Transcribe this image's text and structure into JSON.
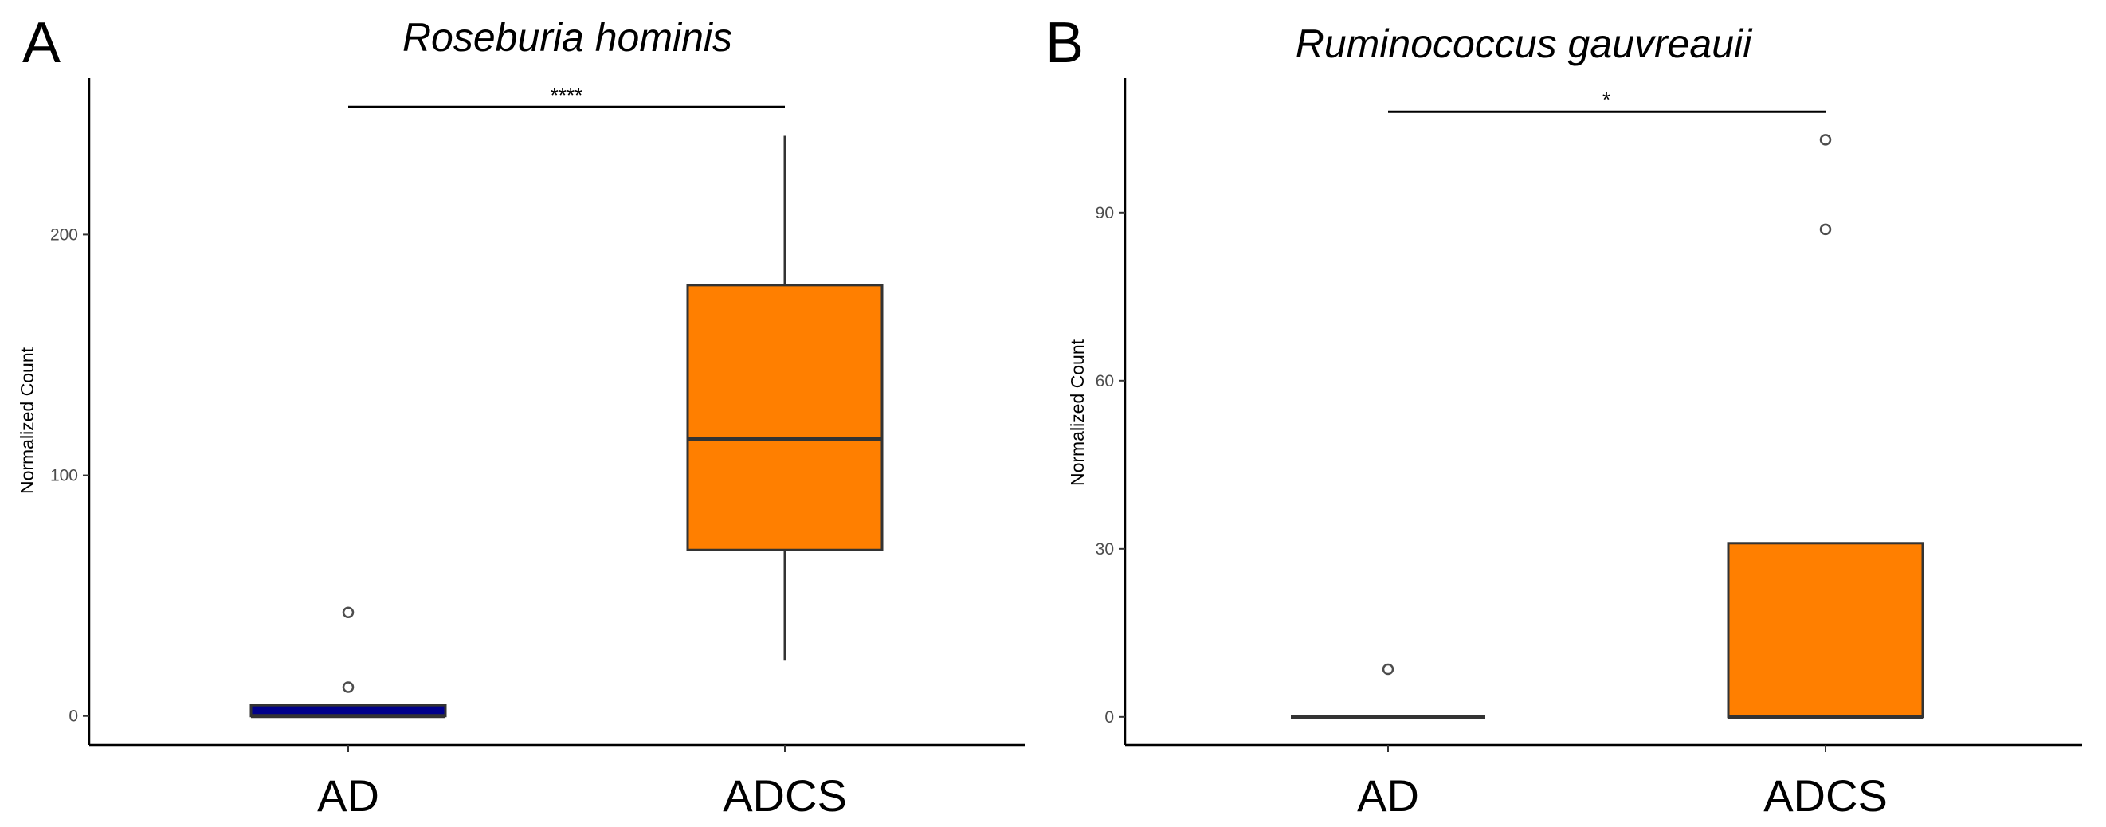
{
  "chart_data": [
    {
      "type": "box",
      "panel_label": "A",
      "title": "Roseburia hominis",
      "xlabel": "",
      "ylabel": "Normalized Count",
      "ylim": [
        -12,
        265
      ],
      "yticks": [
        0,
        100,
        200
      ],
      "categories": [
        "AD",
        "ADCS"
      ],
      "colors": [
        "#00008b",
        "#ff7f00"
      ],
      "boxes": [
        {
          "category": "AD",
          "whisker_low": 0,
          "q1": 0,
          "median": 0,
          "q3": 4.5,
          "whisker_high": 4.5,
          "outliers": [
            12,
            43
          ]
        },
        {
          "category": "ADCS",
          "whisker_low": 23,
          "q1": 69,
          "median": 115,
          "q3": 179,
          "whisker_high": 241,
          "outliers": []
        }
      ],
      "significance": {
        "label": "****",
        "y": 253
      }
    },
    {
      "type": "box",
      "panel_label": "B",
      "title": "Ruminococcus gauvreauii",
      "xlabel": "",
      "ylabel": "Normalized Count",
      "ylim": [
        -5,
        114
      ],
      "yticks": [
        0,
        30,
        60,
        90
      ],
      "categories": [
        "AD",
        "ADCS"
      ],
      "colors": [
        "#00008b",
        "#ff7f00"
      ],
      "boxes": [
        {
          "category": "AD",
          "whisker_low": 0,
          "q1": 0,
          "median": 0,
          "q3": 0,
          "whisker_high": 0,
          "outliers": [
            8.5
          ]
        },
        {
          "category": "ADCS",
          "whisker_low": 0,
          "q1": 0,
          "median": 0,
          "q3": 31,
          "whisker_high": 31,
          "outliers": [
            87,
            103
          ]
        }
      ],
      "significance": {
        "label": "*",
        "y": 108
      }
    }
  ]
}
